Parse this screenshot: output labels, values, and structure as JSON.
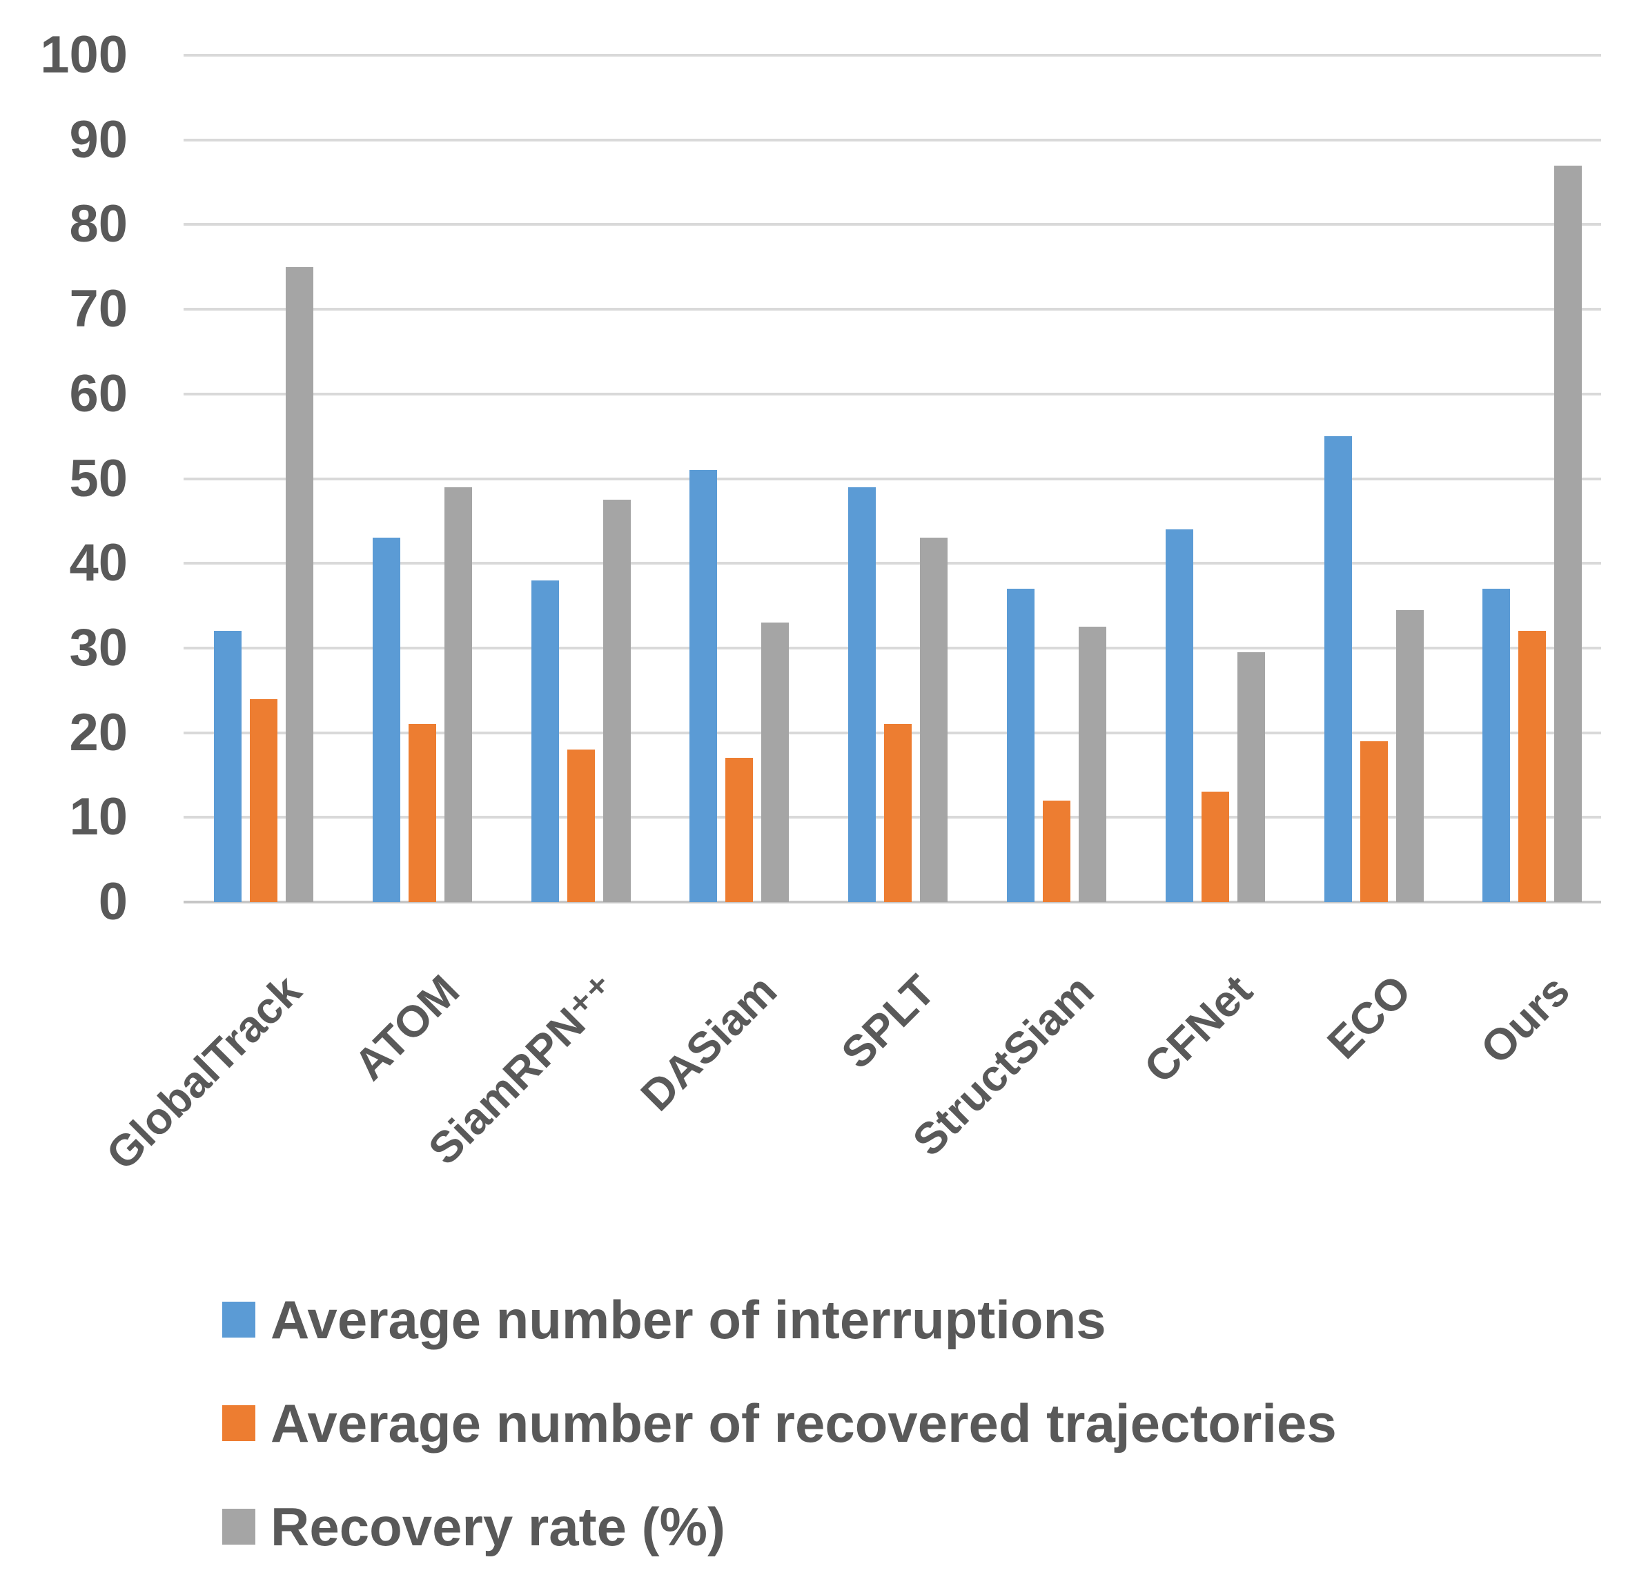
{
  "chart_data": {
    "type": "bar",
    "title": "",
    "categories": [
      "GlobalTrack",
      "ATOM",
      "SiamRPN⁺⁺",
      "DASiam",
      "SPLT",
      "StructSiam",
      "CFNet",
      "ECO",
      "Ours"
    ],
    "series": [
      {
        "name": "Average number of interruptions",
        "color": "#5B9BD5",
        "values": [
          32,
          43,
          38,
          51,
          49,
          37,
          44,
          55,
          37
        ]
      },
      {
        "name": "Average number of recovered trajectories",
        "color": "#ED7D31",
        "values": [
          24,
          21,
          18,
          17,
          21,
          12,
          13,
          19,
          32
        ]
      },
      {
        "name": "Recovery rate (%)",
        "color": "#A5A5A5",
        "values": [
          75,
          49,
          47.5,
          33,
          43,
          32.5,
          29.5,
          34.5,
          87
        ]
      }
    ],
    "ylim": [
      0,
      100
    ],
    "ytick_step": 10,
    "yticks": [
      0,
      10,
      20,
      30,
      40,
      50,
      60,
      70,
      80,
      90,
      100
    ],
    "grid": true,
    "legend_position": "bottom-left",
    "legend_orientation": "vertical"
  },
  "colors": {
    "grid": "#D9D9D9",
    "axis_line": "#C6C6C6",
    "text": "#595959",
    "background": "#FFFFFF"
  }
}
